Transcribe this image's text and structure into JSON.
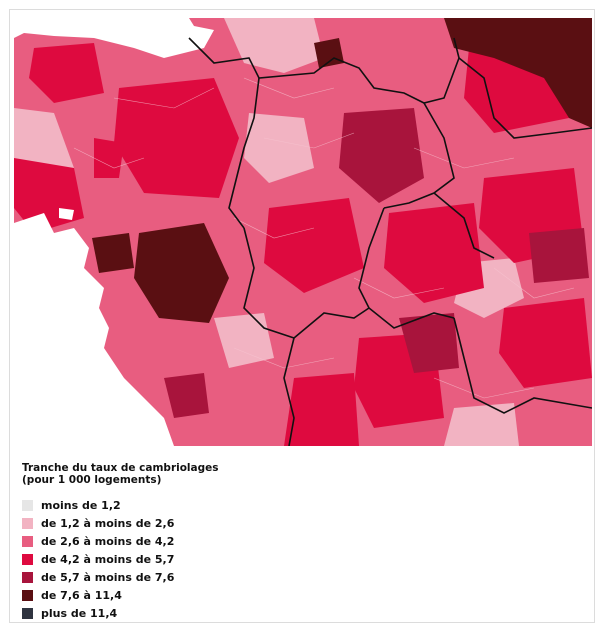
{
  "legend": {
    "title_line1": "Tranche du taux de cambriolages",
    "title_line2": "(pour 1 000 logements)",
    "items": [
      {
        "label": "moins de 1,2",
        "color": "#e6e6e6"
      },
      {
        "label": "de 1,2 à moins de 2,6",
        "color": "#f2b3c2"
      },
      {
        "label": "de 2,6 à moins de 4,2",
        "color": "#e85d80"
      },
      {
        "label": "de 4,2 à moins de 5,7",
        "color": "#de0a3f"
      },
      {
        "label": "de 5,7 à moins de 7,6",
        "color": "#a8143c"
      },
      {
        "label": "de 7,6 à 11,4",
        "color": "#5a0f12"
      },
      {
        "label": "plus de 11,4",
        "color": "#2f3440"
      }
    ]
  },
  "map": {
    "sea_color": "#ffffff",
    "border_color": "#111111"
  }
}
